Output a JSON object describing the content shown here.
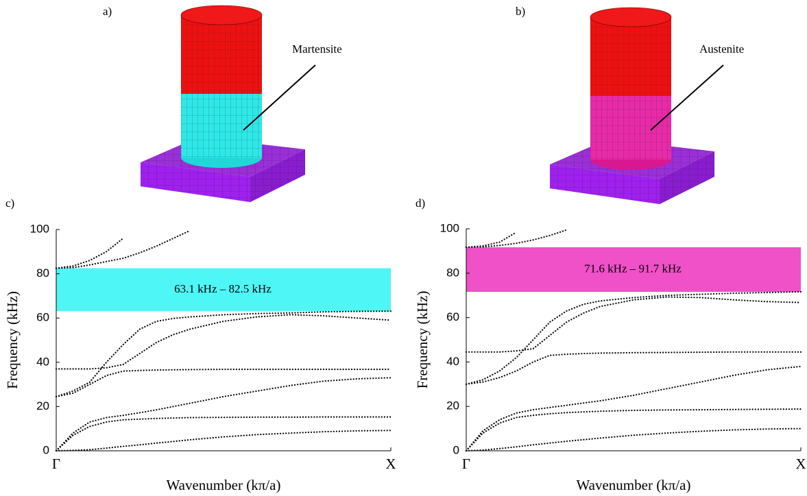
{
  "panels": [
    {
      "label": "a)",
      "material": "Martensite"
    },
    {
      "label": "b)",
      "material": "Austenite"
    }
  ],
  "chart_data": [
    {
      "type": "line",
      "panel_label": "c)",
      "xlabel": "Wavenumber (kπ/a)",
      "ylabel": "Frequency (kHz)",
      "xlim": [
        0,
        1
      ],
      "xticks": [
        {
          "value": 0,
          "label": "Γ"
        },
        {
          "value": 1,
          "label": "X"
        }
      ],
      "ylim": [
        0,
        100
      ],
      "yticks": [
        0,
        20,
        40,
        60,
        80,
        100
      ],
      "line_color": "#000000",
      "line_style": "dotted",
      "band_gap": {
        "range": [
          63.1,
          82.5
        ],
        "label": "63.1 kHz – 82.5 kHz",
        "color": "#4ff6f6"
      },
      "x": [
        0,
        0.05,
        0.1,
        0.15,
        0.2,
        0.25,
        0.3,
        0.35,
        0.4,
        0.5,
        0.6,
        0.7,
        0.8,
        0.9,
        1
      ],
      "series": [
        {
          "values": [
            0,
            0.2,
            0.5,
            1.2,
            2,
            2.7,
            3.5,
            4.2,
            5,
            6.3,
            7.3,
            8,
            8.6,
            9,
            9.2
          ]
        },
        {
          "values": [
            0,
            7,
            11,
            13,
            14,
            14.3,
            14.6,
            14.8,
            15,
            15.1,
            15.2,
            15.2,
            15.3,
            15.3,
            15.3
          ]
        },
        {
          "values": [
            0,
            8,
            13,
            15,
            16,
            17.2,
            18.5,
            20,
            21.5,
            24.5,
            27,
            29.5,
            31.5,
            32.5,
            33
          ]
        },
        {
          "values": [
            24.5,
            26,
            30,
            34,
            36,
            36.3,
            36.5,
            36.6,
            36.7,
            36.8,
            36.8,
            36.8,
            36.8,
            36.8,
            36.8
          ]
        },
        {
          "values": [
            24.5,
            27,
            31,
            40,
            48,
            55,
            58.5,
            59.8,
            60.5,
            61.5,
            62,
            62.3,
            62.8,
            63,
            63.1
          ]
        },
        {
          "values": [
            37,
            37,
            37,
            37.5,
            39,
            44,
            49,
            52.5,
            55,
            58.5,
            60.5,
            61.5,
            61,
            60,
            59
          ]
        },
        {
          "values": [
            82.5,
            83.5,
            86,
            90,
            96,
            null,
            null,
            null,
            null,
            null,
            null,
            null,
            null,
            null,
            null
          ]
        },
        {
          "values": [
            82.5,
            82.8,
            84,
            85.5,
            87,
            89.5,
            92.5,
            96,
            99.5,
            null,
            null,
            null,
            null,
            null,
            null
          ]
        }
      ]
    },
    {
      "type": "line",
      "panel_label": "d)",
      "xlabel": "Wavenumber (kπ/a)",
      "ylabel": "Frequency (kHz)",
      "xlim": [
        0,
        1
      ],
      "xticks": [
        {
          "value": 0,
          "label": "Γ"
        },
        {
          "value": 1,
          "label": "X"
        }
      ],
      "ylim": [
        0,
        100
      ],
      "yticks": [
        0,
        20,
        40,
        60,
        80,
        100
      ],
      "line_color": "#000000",
      "line_style": "dotted",
      "band_gap": {
        "range": [
          71.6,
          91.7
        ],
        "label": "71.6 kHz – 91.7 kHz",
        "color": "#f050c8"
      },
      "x": [
        0,
        0.05,
        0.1,
        0.15,
        0.2,
        0.25,
        0.3,
        0.35,
        0.4,
        0.5,
        0.6,
        0.7,
        0.8,
        0.9,
        1
      ],
      "series": [
        {
          "values": [
            0,
            0.3,
            1,
            1.8,
            2.7,
            3.5,
            4.3,
            5,
            5.7,
            7,
            8,
            8.8,
            9.4,
            9.8,
            10
          ]
        },
        {
          "values": [
            0,
            8,
            12.5,
            15,
            16,
            16.7,
            17.2,
            17.5,
            17.8,
            18.2,
            18.4,
            18.5,
            18.6,
            18.7,
            18.8
          ]
        },
        {
          "values": [
            0,
            9,
            14,
            17,
            18.5,
            19.5,
            20.5,
            21.5,
            22.5,
            25,
            28,
            31,
            34,
            36.5,
            38
          ]
        },
        {
          "values": [
            30,
            31,
            33,
            36,
            40,
            43,
            43.5,
            43.8,
            44,
            44.2,
            44.3,
            44.4,
            44.5,
            44.5,
            44.5
          ]
        },
        {
          "values": [
            30,
            32,
            36,
            42,
            50,
            58,
            63,
            66,
            67.5,
            69,
            70,
            70.5,
            71,
            71.3,
            71.6
          ]
        },
        {
          "values": [
            44.5,
            44.5,
            44.5,
            45,
            46,
            52,
            58,
            62,
            65,
            68,
            69.3,
            69,
            68,
            67.2,
            66.8
          ]
        },
        {
          "values": [
            91.7,
            92.3,
            94,
            98.5,
            null,
            null,
            null,
            null,
            null,
            null,
            null,
            null,
            null,
            null,
            null
          ]
        },
        {
          "values": [
            91.7,
            91.9,
            92.5,
            93.5,
            95,
            97,
            99.5,
            null,
            null,
            null,
            null,
            null,
            null,
            null,
            null
          ]
        }
      ]
    }
  ]
}
